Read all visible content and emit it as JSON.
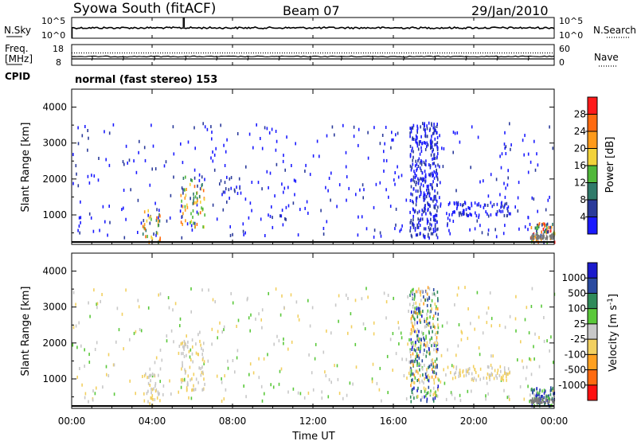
{
  "header": {
    "station": "Syowa South (fitACF)",
    "beam": "Beam 07",
    "date": "29/Jan/2010"
  },
  "top_panels": {
    "nsky_label": "N.Sky",
    "nsky_ticks": [
      "10^5",
      "10^0"
    ],
    "nsearch_label": "N.Search",
    "nsearch_ticks": [
      "10^5",
      "10^0"
    ],
    "freq_label": "Freq.",
    "freq_unit": "[MHz]",
    "freq_ticks": [
      "18",
      "8"
    ],
    "nave_label": "Nave",
    "nave_ticks": [
      "60",
      "0"
    ],
    "cpid_label": "CPID",
    "cpid_text": "normal (fast stereo) 153"
  },
  "colors": {
    "power_scale": [
      "#1a1aff",
      "#2a3a9a",
      "#2f7a6a",
      "#50b83a",
      "#f2d23a",
      "#ff9a1a",
      "#ff6a10",
      "#ff1a1a"
    ],
    "velocity_scale": [
      "#ff1010",
      "#ff6a10",
      "#ffa020",
      "#f2d060",
      "#c8c8c8",
      "#5ac83a",
      "#2f8a5a",
      "#2a4aa0",
      "#1a1acc"
    ],
    "ground_scatter": "#7a7a7a"
  },
  "chart_data": [
    {
      "type": "heatmap",
      "name": "power",
      "ylabel": "Slant Range [km]",
      "yticks": [
        "1000",
        "2000",
        "3000",
        "4000"
      ],
      "ylim": [
        180,
        4500
      ],
      "colorbar_label": "Power [dB]",
      "colorbar_ticks": [
        "4",
        "8",
        "12",
        "16",
        "20",
        "24",
        "28"
      ],
      "clim": [
        0,
        32
      ],
      "regions": [
        {
          "t0": 0.0,
          "t1": 24.0,
          "r0": 400,
          "r1": 3600,
          "n": 380,
          "p0": 1,
          "p1": 5
        },
        {
          "t0": 16.8,
          "t1": 18.2,
          "r0": 400,
          "r1": 3600,
          "n": 330,
          "p0": 1,
          "p1": 6
        },
        {
          "t0": 3.5,
          "t1": 4.4,
          "r0": 250,
          "r1": 1200,
          "n": 40,
          "p0": 3,
          "p1": 26
        },
        {
          "t0": 5.4,
          "t1": 6.6,
          "r0": 700,
          "r1": 2100,
          "n": 70,
          "p0": 3,
          "p1": 28
        },
        {
          "t0": 7.2,
          "t1": 8.4,
          "r0": 1500,
          "r1": 2100,
          "n": 18,
          "p0": 2,
          "p1": 6
        },
        {
          "t0": 18.6,
          "t1": 21.8,
          "r0": 1000,
          "r1": 1400,
          "n": 80,
          "p0": 2,
          "p1": 5
        },
        {
          "t0": 22.8,
          "t1": 24.0,
          "r0": 250,
          "r1": 800,
          "n": 70,
          "p0": 3,
          "p1": 30
        }
      ]
    },
    {
      "type": "heatmap",
      "name": "velocity",
      "ylabel": "Slant Range [km]",
      "yticks": [
        "1000",
        "2000",
        "3000",
        "4000"
      ],
      "ylim": [
        180,
        4500
      ],
      "xlabel": "Time UT",
      "xticks": [
        "00:00",
        "04:00",
        "08:00",
        "12:00",
        "16:00",
        "20:00",
        "00:00"
      ],
      "xlim": [
        0,
        24
      ],
      "colorbar_label": "Velocity [m s",
      "colorbar_label_exponent": "-1",
      "colorbar_label_close": "]",
      "colorbar_ticks": [
        "-1000",
        "-500",
        "-100",
        "-25",
        "25",
        "100",
        "500",
        "1000"
      ],
      "clim": [
        -1200,
        1200
      ],
      "regions": [
        {
          "t0": 0.0,
          "t1": 24.0,
          "r0": 400,
          "r1": 3600,
          "n": 380,
          "v0": -300,
          "v1": 300
        },
        {
          "t0": 16.8,
          "t1": 18.2,
          "r0": 400,
          "r1": 3600,
          "n": 330,
          "v0": -600,
          "v1": 1100
        },
        {
          "t0": 3.5,
          "t1": 4.4,
          "r0": 250,
          "r1": 1200,
          "n": 40,
          "v0": -400,
          "v1": 150
        },
        {
          "t0": 5.4,
          "t1": 6.6,
          "r0": 700,
          "r1": 2100,
          "n": 70,
          "v0": -300,
          "v1": 120
        },
        {
          "t0": 18.6,
          "t1": 21.8,
          "r0": 1000,
          "r1": 1400,
          "n": 80,
          "v0": -250,
          "v1": -30
        },
        {
          "t0": 22.8,
          "t1": 24.0,
          "r0": 250,
          "r1": 800,
          "n": 70,
          "v0": 60,
          "v1": 1200
        }
      ]
    }
  ]
}
